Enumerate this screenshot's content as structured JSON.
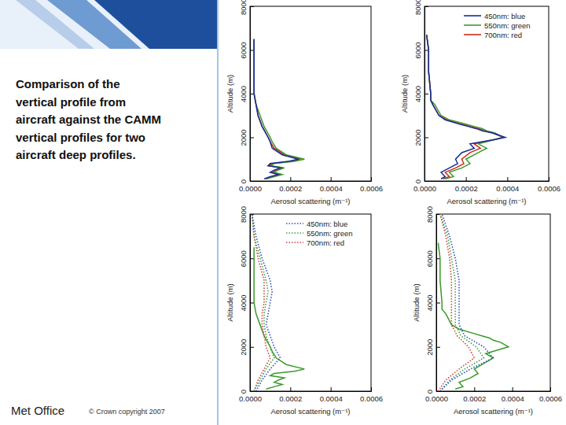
{
  "slide": {
    "caption": [
      "Comparison of the",
      "vertical profile from",
      "aircraft against the CAMM",
      "vertical profiles for two",
      "aircraft deep profiles."
    ],
    "footer": "Met Office",
    "copyright": "© Crown copyright 2007"
  },
  "chart_data": [
    {
      "type": "line",
      "x_label": "Aerosol scattering (m⁻¹)",
      "y_label": "Altitude (m)",
      "xlim": [
        0,
        0.0006
      ],
      "ylim": [
        0,
        8000
      ],
      "xticks": [
        {
          "value": 0,
          "label": "0.0000"
        },
        {
          "value": 0.0002,
          "label": "0.0002"
        },
        {
          "value": 0.0004,
          "label": "0.0004"
        },
        {
          "value": 0.0006,
          "label": "0.0006"
        }
      ],
      "yticks": [
        0,
        2000,
        4000,
        6000,
        8000
      ],
      "series": [
        {
          "color": "#1b2a9b",
          "line_style": "solid",
          "y": [
            100,
            200,
            300,
            400,
            500,
            600,
            700,
            800,
            900,
            1000,
            1200,
            1500,
            1800,
            2000,
            2500,
            3000,
            3500,
            4000,
            5000,
            6000,
            6500
          ],
          "x": [
            7e-05,
            0.0001,
            0.00014,
            0.0001,
            0.00012,
            0.00015,
            9e-05,
            0.0001,
            0.00019,
            0.00024,
            0.00016,
            0.00011,
            0.0001,
            9e-05,
            6e-05,
            4e-05,
            3e-05,
            2e-05,
            2e-05,
            2e-05,
            2e-05
          ]
        },
        {
          "color": "#3a9a2a",
          "line_style": "solid",
          "y": [
            100,
            200,
            300,
            400,
            500,
            600,
            700,
            800,
            900,
            1000,
            1200,
            1500,
            1800,
            2000,
            2500,
            3000,
            3500,
            4000,
            5000,
            6000,
            6500
          ],
          "x": [
            8e-05,
            0.00012,
            0.00016,
            0.00012,
            0.00014,
            0.00017,
            0.0001,
            0.00012,
            0.00022,
            0.00027,
            0.00018,
            0.00013,
            0.00011,
            0.0001,
            7e-05,
            5e-05,
            3e-05,
            2e-05,
            2e-05,
            2e-05,
            2e-05
          ]
        },
        {
          "color": "#cc2a1a",
          "line_style": "solid",
          "y": [
            100,
            200,
            300,
            400,
            500,
            600,
            700,
            800,
            900,
            1000,
            1200,
            1500,
            1800,
            2000,
            2500,
            3000,
            3500,
            4000,
            5000,
            6000,
            6500
          ],
          "x": [
            8e-05,
            0.00011,
            0.00015,
            0.00011,
            0.00013,
            0.00016,
            9e-05,
            0.00011,
            0.0002,
            0.00025,
            0.00017,
            0.00012,
            0.0001,
            9e-05,
            6e-05,
            4e-05,
            3e-05,
            2e-05,
            2e-05,
            2e-05,
            2e-05
          ]
        }
      ]
    },
    {
      "type": "line",
      "x_label": "Aerosol scattering (m⁻¹)",
      "y_label": "Altitude (m)",
      "xlim": [
        0,
        0.0006
      ],
      "ylim": [
        0,
        8000
      ],
      "xticks": [
        {
          "value": 0,
          "label": "0.0000"
        },
        {
          "value": 0.0002,
          "label": "0.0002"
        },
        {
          "value": 0.0004,
          "label": "0.0004"
        },
        {
          "value": 0.0006,
          "label": "0.0006"
        }
      ],
      "yticks": [
        0,
        2000,
        4000,
        6000,
        8000
      ],
      "legend": "upper right",
      "series": [
        {
          "name": "450nm: blue",
          "color": "#1b2a9b",
          "line_style": "solid",
          "y": [
            100,
            200,
            400,
            600,
            800,
            1000,
            1300,
            1500,
            1700,
            1900,
            2000,
            2200,
            2300,
            2400,
            2500,
            2600,
            2800,
            3000,
            3500,
            3700,
            4000,
            5000,
            6000,
            6700
          ],
          "x": [
            8e-05,
            0.0001,
            8e-05,
            0.00012,
            0.00016,
            0.00015,
            0.00018,
            0.00024,
            0.00022,
            0.00034,
            0.00039,
            0.00033,
            0.00028,
            0.00025,
            0.00021,
            0.00017,
            0.0001,
            7e-05,
            4e-05,
            3e-05,
            3e-05,
            2e-05,
            2e-05,
            1e-05
          ]
        },
        {
          "name": "550nm: green",
          "color": "#3a9a2a",
          "line_style": "solid",
          "y": [
            100,
            200,
            400,
            600,
            800,
            1000,
            1300,
            1500,
            1700,
            1900,
            2000,
            2200,
            2300,
            2400,
            2500,
            2600,
            2800,
            3000,
            3500,
            3700,
            4000,
            5000,
            6000,
            6700
          ],
          "x": [
            0.0001,
            0.00014,
            0.00012,
            0.00018,
            0.00022,
            0.0002,
            0.00026,
            0.0003,
            0.00026,
            0.00034,
            0.00038,
            0.00034,
            0.0003,
            0.00028,
            0.00024,
            0.0002,
            0.00012,
            8e-05,
            5e-05,
            3e-05,
            3e-05,
            2e-05,
            2e-05,
            1e-05
          ]
        },
        {
          "name": "700nm: red",
          "color": "#cc2a1a",
          "line_style": "solid",
          "y": [
            100,
            200,
            400,
            600,
            800,
            1000,
            1300,
            1500,
            1700,
            1900,
            2000,
            2200,
            2300,
            2400,
            2500,
            2600,
            2800,
            3000,
            3500,
            3700,
            4000,
            5000,
            6000,
            6700
          ],
          "x": [
            9e-05,
            0.00012,
            0.0001,
            0.00015,
            0.00019,
            0.00018,
            0.00022,
            0.00027,
            0.00024,
            0.00034,
            0.00038,
            0.00033,
            0.00029,
            0.00026,
            0.00022,
            0.00018,
            0.00011,
            7e-05,
            4e-05,
            3e-05,
            3e-05,
            2e-05,
            2e-05,
            1e-05
          ]
        }
      ]
    },
    {
      "type": "line",
      "x_label": "Aerosol scattering (m⁻¹)",
      "y_label": "Altitude (m)",
      "xlim": [
        0,
        0.0006
      ],
      "ylim": [
        0,
        8000
      ],
      "xticks": [
        {
          "value": 0,
          "label": "0.0000"
        },
        {
          "value": 0.0002,
          "label": "0.0002"
        },
        {
          "value": 0.0004,
          "label": "0.0004"
        },
        {
          "value": 0.0006,
          "label": "0.0006"
        }
      ],
      "yticks": [
        0,
        2000,
        4000,
        6000,
        8000
      ],
      "legend": "upper right",
      "series": [
        {
          "name": "450nm: blue",
          "color": "#3050c0",
          "line_style": "dotted",
          "y": [
            0,
            500,
            1000,
            1500,
            2000,
            2500,
            3000,
            3500,
            4000,
            4500,
            5000,
            6000,
            7000,
            8000
          ],
          "x": [
            3e-05,
            6e-05,
            0.0001,
            0.00015,
            0.00012,
            0.0001,
            8e-05,
            9e-05,
            0.0001,
            0.00011,
            0.0001,
            6e-05,
            3e-05,
            1e-05
          ]
        },
        {
          "name": "550nm: green",
          "color": "#40a040",
          "line_style": "dotted",
          "y": [
            0,
            500,
            1000,
            1500,
            2000,
            2500,
            3000,
            3500,
            4000,
            4500,
            5000,
            6000,
            7000,
            8000
          ],
          "x": [
            2e-05,
            5e-05,
            8e-05,
            0.00012,
            0.0001,
            8e-05,
            7e-05,
            7e-05,
            8e-05,
            9e-05,
            8e-05,
            5e-05,
            2e-05,
            1e-05
          ]
        },
        {
          "name": "700nm: red",
          "color": "#d04040",
          "line_style": "dotted",
          "y": [
            0,
            500,
            1000,
            1500,
            2000,
            2500,
            3000,
            3500,
            4000,
            4500,
            5000,
            6000,
            7000,
            8000
          ],
          "x": [
            2e-05,
            4e-05,
            7e-05,
            0.0001,
            8e-05,
            7e-05,
            6e-05,
            6e-05,
            7e-05,
            7e-05,
            7e-05,
            4e-05,
            2e-05,
            1e-05
          ]
        },
        {
          "color": "#3a9a2a",
          "line_style": "solid",
          "y": [
            100,
            200,
            300,
            400,
            500,
            600,
            700,
            800,
            900,
            1000,
            1200,
            1500,
            1800,
            2000,
            2500,
            3000,
            3500,
            4000,
            5000,
            6000,
            6500
          ],
          "x": [
            8e-05,
            0.00012,
            0.00016,
            0.00012,
            0.00014,
            0.00017,
            0.0001,
            0.00012,
            0.00022,
            0.00027,
            0.00018,
            0.00013,
            0.00011,
            0.0001,
            7e-05,
            5e-05,
            3e-05,
            2e-05,
            2e-05,
            2e-05,
            2e-05
          ]
        }
      ]
    },
    {
      "type": "line",
      "x_label": "Aerosol scattering (m⁻¹)",
      "y_label": "Altitude (m)",
      "xlim": [
        0,
        0.0006
      ],
      "ylim": [
        0,
        8000
      ],
      "xticks": [
        {
          "value": 0,
          "label": "0.0000"
        },
        {
          "value": 0.0002,
          "label": "0.0002"
        },
        {
          "value": 0.0004,
          "label": "0.0004"
        },
        {
          "value": 0.0006,
          "label": "0.0006"
        }
      ],
      "yticks": [
        0,
        2000,
        4000,
        6000,
        8000
      ],
      "series": [
        {
          "color": "#3050c0",
          "line_style": "dotted",
          "y": [
            0,
            500,
            1000,
            1500,
            2000,
            2500,
            3000,
            3500,
            4000,
            4500,
            5000,
            6000,
            7000,
            8000
          ],
          "x": [
            2e-05,
            8e-05,
            0.00018,
            0.0003,
            0.00025,
            0.00015,
            0.00012,
            0.00012,
            0.00012,
            0.00012,
            0.00012,
            0.0001,
            7e-05,
            3e-05
          ]
        },
        {
          "color": "#40a040",
          "line_style": "dotted",
          "y": [
            0,
            500,
            1000,
            1500,
            2000,
            2500,
            3000,
            3500,
            4000,
            4500,
            5000,
            6000,
            7000,
            8000
          ],
          "x": [
            2e-05,
            7e-05,
            0.00015,
            0.00025,
            0.00021,
            0.00013,
            0.0001,
            0.0001,
            0.0001,
            0.0001,
            0.0001,
            8e-05,
            6e-05,
            2e-05
          ]
        },
        {
          "color": "#d04040",
          "line_style": "dotted",
          "y": [
            0,
            500,
            1000,
            1500,
            2000,
            2500,
            3000,
            3500,
            4000,
            4500,
            5000,
            6000,
            7000,
            8000
          ],
          "x": [
            1e-05,
            5e-05,
            0.00012,
            0.0002,
            0.00017,
            0.00011,
            8e-05,
            8e-05,
            8e-05,
            8e-05,
            8e-05,
            7e-05,
            5e-05,
            2e-05
          ]
        },
        {
          "color": "#3a9a2a",
          "line_style": "solid",
          "y": [
            100,
            200,
            400,
            600,
            800,
            1000,
            1300,
            1500,
            1700,
            1900,
            2000,
            2200,
            2300,
            2400,
            2500,
            2600,
            2800,
            3000,
            3500,
            3700,
            4000,
            5000,
            6000,
            6700
          ],
          "x": [
            0.0001,
            0.00014,
            0.00012,
            0.00018,
            0.00022,
            0.0002,
            0.00026,
            0.0003,
            0.00026,
            0.00034,
            0.00038,
            0.00034,
            0.0003,
            0.00028,
            0.00024,
            0.0002,
            0.00012,
            8e-05,
            5e-05,
            3e-05,
            3e-05,
            2e-05,
            2e-05,
            1e-05
          ]
        }
      ]
    }
  ]
}
